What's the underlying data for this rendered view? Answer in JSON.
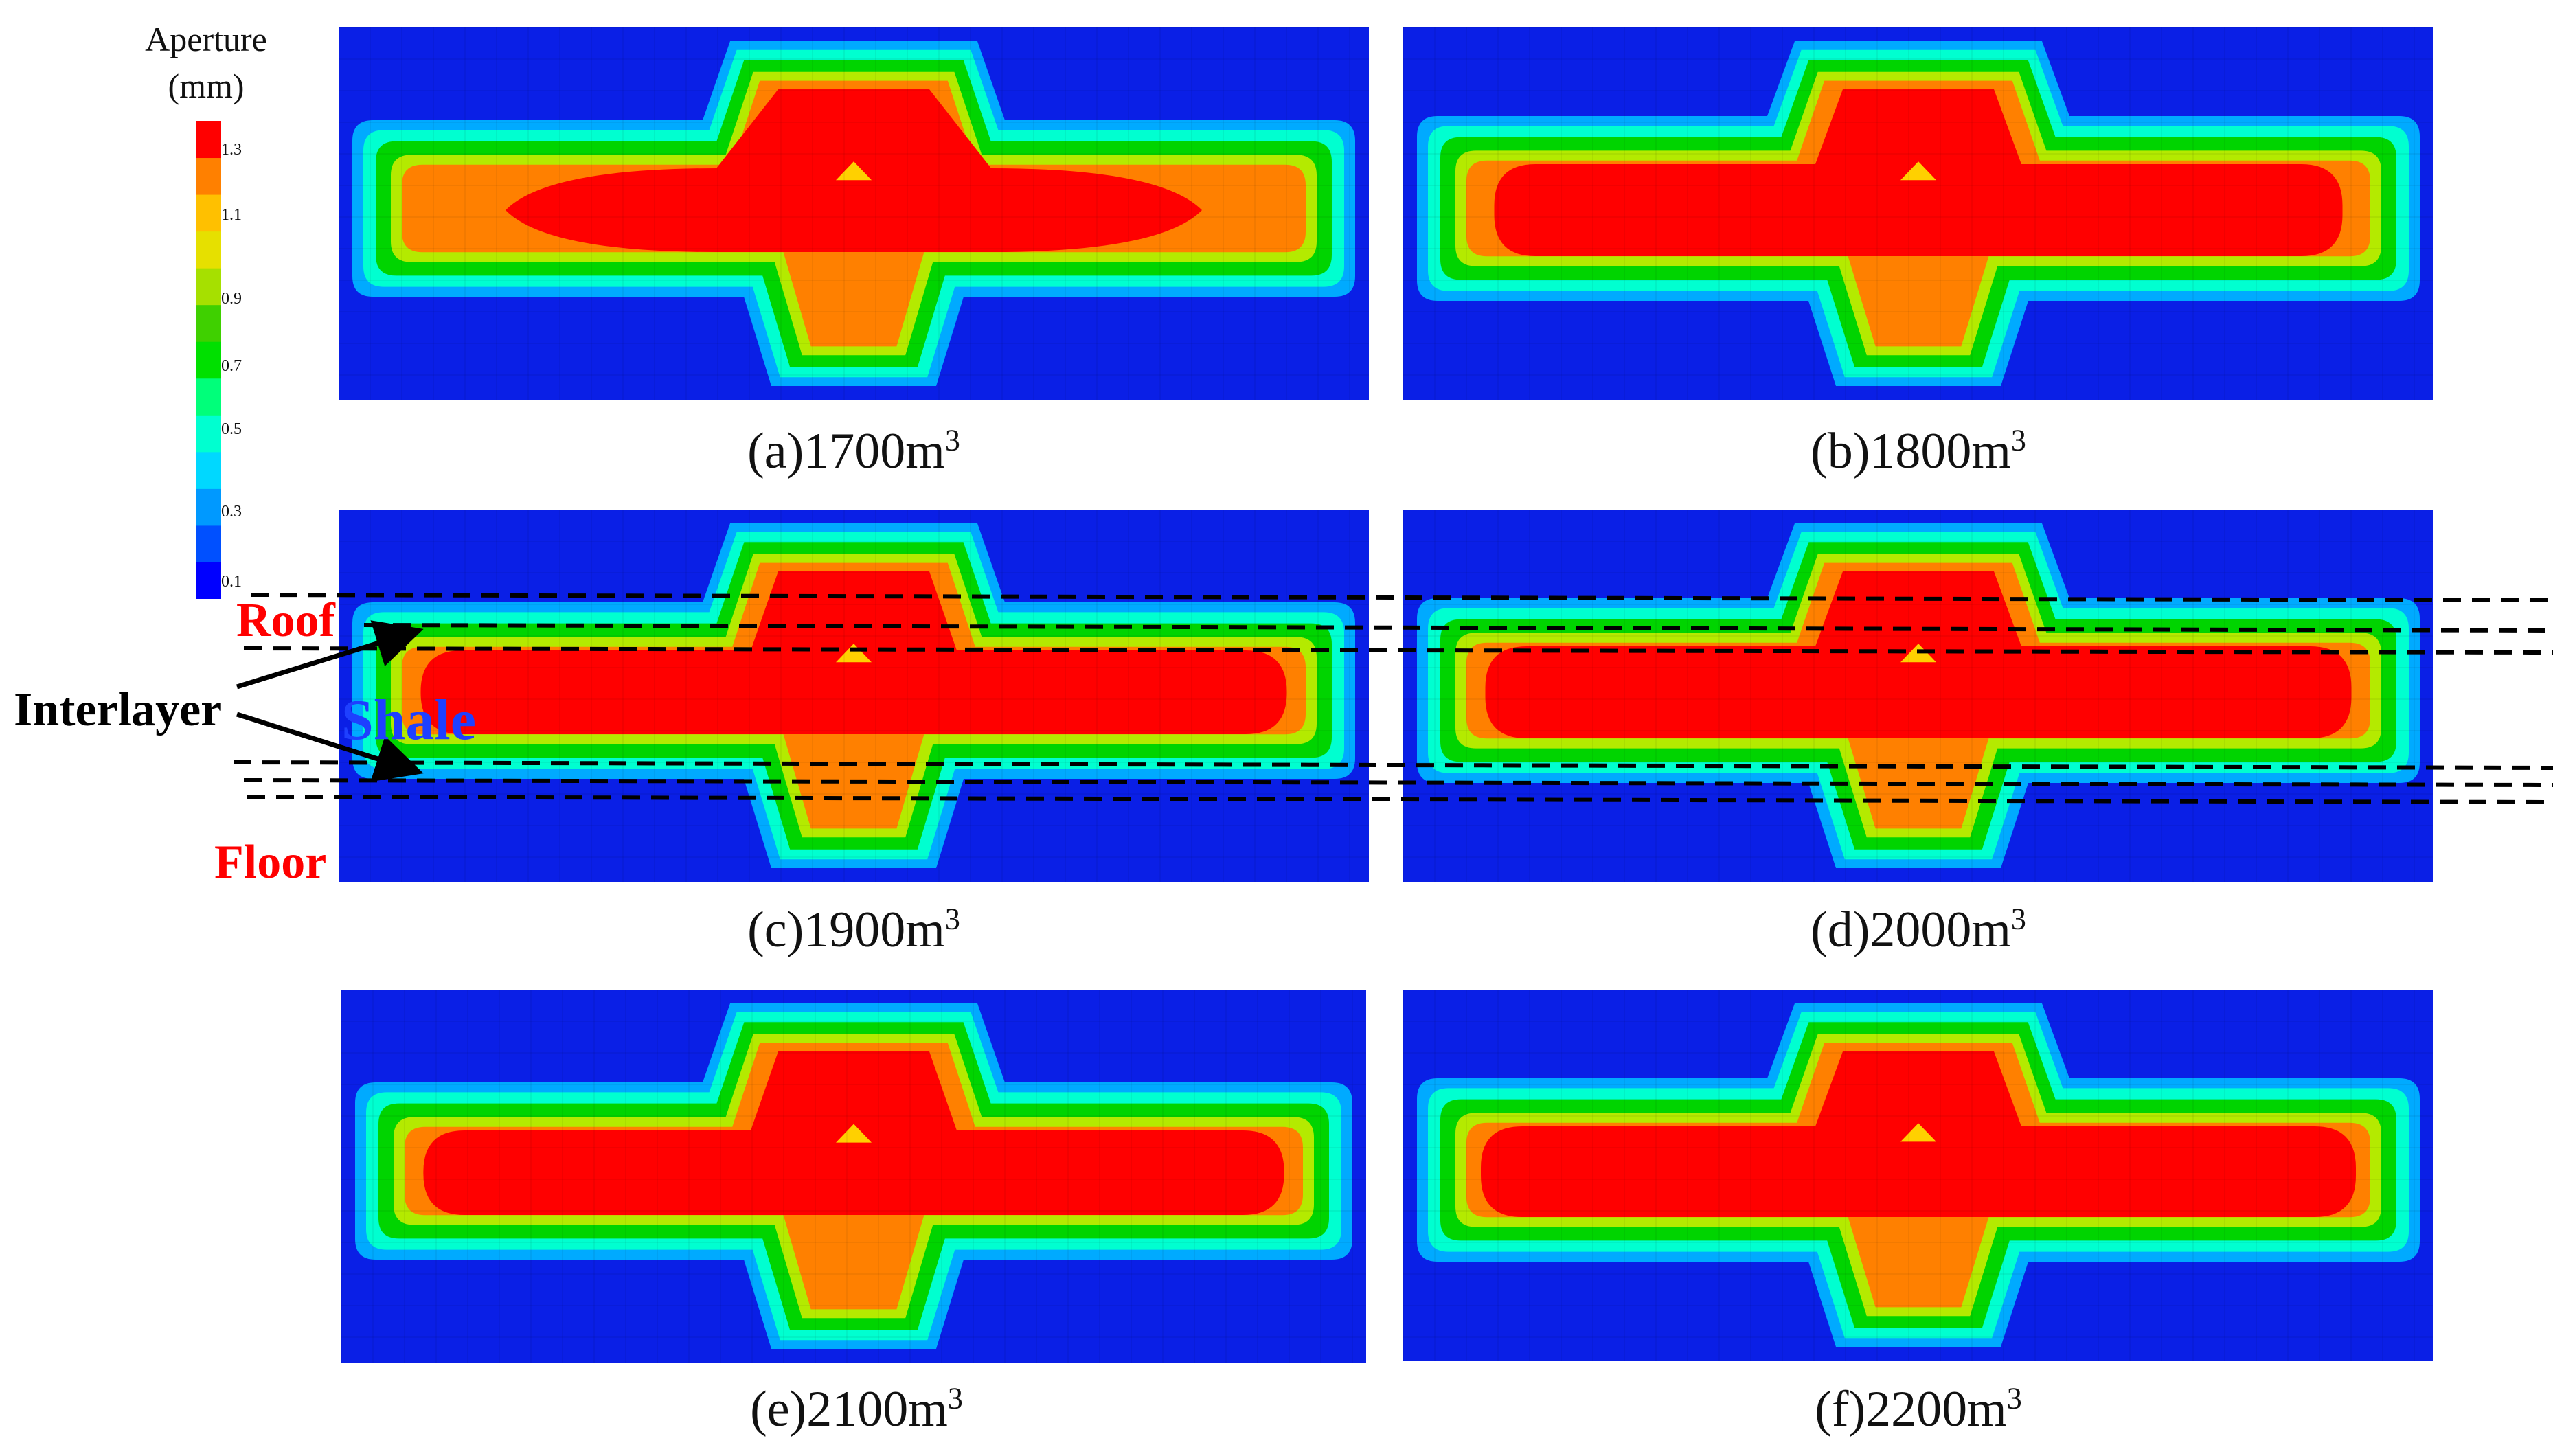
{
  "legend": {
    "title": "Aperture",
    "unit": "(mm)",
    "ticks": [
      "1.3",
      "1.1",
      "0.9",
      "0.7",
      "0.5",
      "0.3",
      "0.1"
    ],
    "colors": [
      "#0000ff",
      "#0050ff",
      "#0099ff",
      "#00d8ff",
      "#00ffd0",
      "#00ff7a",
      "#00e000",
      "#3fd000",
      "#a6e000",
      "#e6e000",
      "#ffc000",
      "#ff8000",
      "#ff0000"
    ]
  },
  "panels": [
    {
      "label": "(a)1700m",
      "sup": "3",
      "red_fraction": 0.78,
      "stage": "a"
    },
    {
      "label": "(b)1800m",
      "sup": "3",
      "red_fraction": 0.95,
      "stage": "b"
    },
    {
      "label": "(c)1900m",
      "sup": "3",
      "red_fraction": 0.97,
      "stage": "c"
    },
    {
      "label": "(d)2000m",
      "sup": "3",
      "red_fraction": 0.97,
      "stage": "d"
    },
    {
      "label": "(e)2100m",
      "sup": "3",
      "red_fraction": 0.97,
      "stage": "e"
    },
    {
      "label": "(f)2200m",
      "sup": "3",
      "red_fraction": 0.98,
      "stage": "f"
    }
  ],
  "annotations": {
    "roof": "Roof",
    "shale": "Shale",
    "interlayer": "Interlayer",
    "floor": "Floor"
  }
}
